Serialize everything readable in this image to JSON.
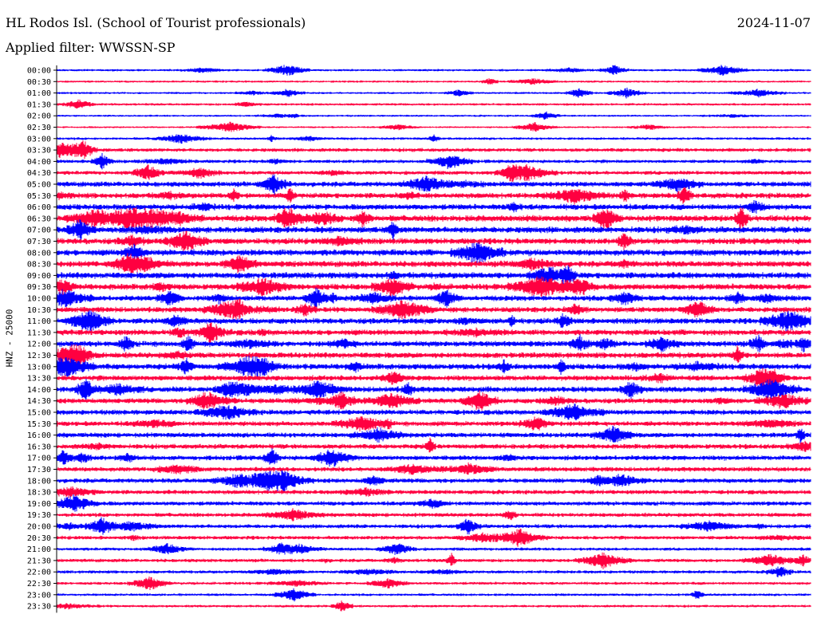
{
  "header": {
    "title": "HL Rodos Isl. (School of Tourist professionals)",
    "date": "2024-11-07",
    "filter": "Applied filter: WWSSN-SP"
  },
  "chart_data": {
    "type": "line",
    "title": "HL Rodos Isl. (School of Tourist professionals)",
    "date": "2024-11-07",
    "filter": "WWSSN-SP",
    "ylabel": "HNZ - 25000",
    "row_interval_minutes": 30,
    "series_colors": [
      "#0000ff",
      "#ff0040"
    ],
    "y_tick_labels": [
      "00:00",
      "00:30",
      "01:00",
      "01:30",
      "02:00",
      "02:30",
      "03:00",
      "03:30",
      "04:00",
      "04:30",
      "05:00",
      "05:30",
      "06:00",
      "06:30",
      "07:00",
      "07:30",
      "08:00",
      "08:30",
      "09:00",
      "09:30",
      "10:00",
      "10:30",
      "11:00",
      "11:30",
      "12:00",
      "12:30",
      "13:00",
      "13:30",
      "14:00",
      "14:30",
      "15:00",
      "15:30",
      "16:00",
      "16:30",
      "17:00",
      "17:30",
      "18:00",
      "18:30",
      "19:00",
      "19:30",
      "20:00",
      "20:30",
      "21:00",
      "21:30",
      "22:00",
      "22:30",
      "23:00",
      "23:30"
    ],
    "row_activity": [
      0.25,
      0.22,
      0.22,
      0.28,
      0.2,
      0.18,
      0.3,
      0.5,
      0.45,
      0.55,
      0.75,
      0.8,
      0.85,
      0.95,
      0.95,
      0.9,
      0.95,
      0.9,
      0.95,
      0.9,
      0.8,
      0.8,
      0.85,
      0.85,
      0.85,
      0.85,
      0.85,
      0.8,
      0.85,
      0.75,
      0.75,
      0.7,
      0.7,
      0.7,
      0.7,
      0.65,
      0.65,
      0.6,
      0.6,
      0.55,
      0.55,
      0.5,
      0.4,
      0.45,
      0.4,
      0.35,
      0.3,
      0.3
    ],
    "grid": false,
    "legend": "none"
  }
}
